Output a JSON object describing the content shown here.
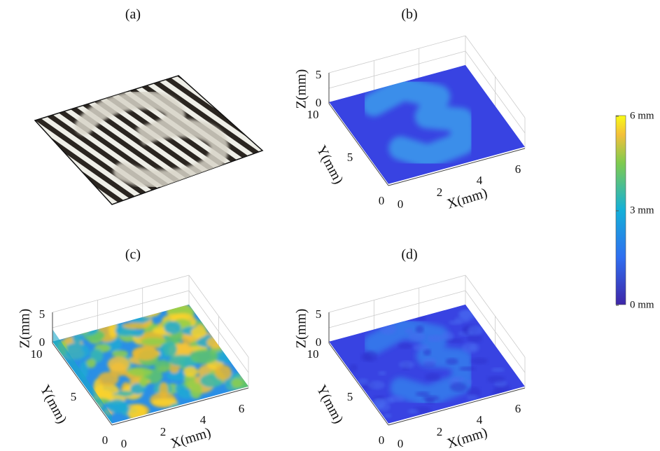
{
  "panels": [
    {
      "label": "(a)"
    },
    {
      "label": "(b)",
      "z_label": "Z(mm)",
      "y_label": "Y(mm)",
      "x_label": "X(mm)",
      "z_ticks": [
        "5",
        "0"
      ],
      "y_ticks": [
        "10",
        "5",
        "0"
      ],
      "x_ticks": [
        "0",
        "2",
        "4",
        "6"
      ]
    },
    {
      "label": "(c)",
      "z_label": "Z(mm)",
      "y_label": "Y(mm)",
      "x_label": "X(mm)",
      "z_ticks": [
        "5",
        "0"
      ],
      "y_ticks": [
        "10",
        "5",
        "0"
      ],
      "x_ticks": [
        "0",
        "2",
        "4",
        "6"
      ]
    },
    {
      "label": "(d)",
      "z_label": "Z(mm)",
      "y_label": "Y(mm)",
      "x_label": "X(mm)",
      "z_ticks": [
        "5",
        "0"
      ],
      "y_ticks": [
        "10",
        "5",
        "0"
      ],
      "x_ticks": [
        "0",
        "2",
        "4",
        "6"
      ]
    }
  ],
  "colorbar": {
    "labels": [
      "6 mm",
      "3 mm",
      "0 mm"
    ]
  }
}
